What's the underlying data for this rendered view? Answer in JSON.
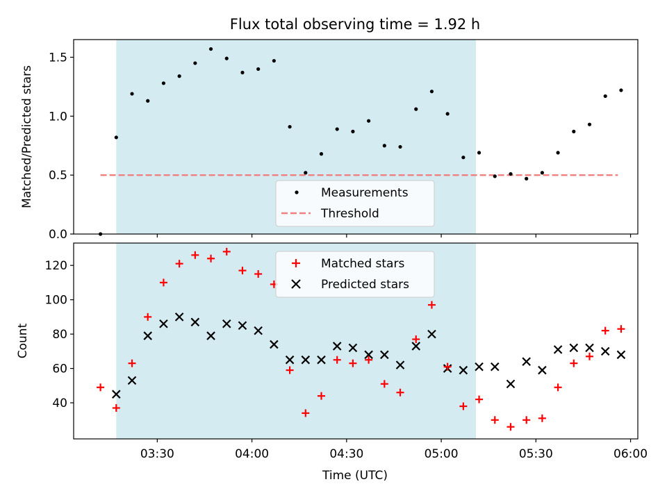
{
  "figure": {
    "title": "Flux total observing time = 1.92 h",
    "xlabel": "Time (UTC)",
    "xticks": [
      "03:30",
      "04:00",
      "04:30",
      "05:00",
      "05:30",
      "06:00"
    ],
    "xtick_minutes": [
      210,
      240,
      270,
      300,
      330,
      360
    ],
    "xlim": [
      183.5,
      362.3
    ],
    "shaded_span": [
      197,
      311
    ],
    "shade_color": "#add8e6"
  },
  "chart_data": [
    {
      "type": "scatter",
      "panel": "top",
      "ylabel": "Matched/Predicted stars",
      "ylim": [
        0,
        1.65
      ],
      "yticks": [
        0.0,
        0.5,
        1.0,
        1.5
      ],
      "ytick_labels": [
        "0.0",
        "0.5",
        "1.0",
        "1.5"
      ],
      "legend_position": "lower center",
      "threshold": {
        "name": "Threshold",
        "value": 0.5,
        "x_range": [
          192,
          356
        ],
        "color": "#f08080"
      },
      "series": [
        {
          "name": "Measurements",
          "color": "#000000",
          "x": [
            192,
            197,
            202,
            207,
            212,
            217,
            222,
            227,
            232,
            237,
            242,
            247,
            252,
            257,
            262,
            267,
            272,
            277,
            282,
            287,
            292,
            297,
            302,
            307,
            312,
            317,
            322,
            327,
            332,
            337,
            342,
            347,
            352,
            357
          ],
          "y": [
            0.0,
            0.82,
            1.19,
            1.13,
            1.28,
            1.34,
            1.45,
            1.57,
            1.49,
            1.37,
            1.4,
            1.47,
            0.91,
            0.52,
            0.68,
            0.89,
            0.87,
            0.96,
            0.75,
            0.74,
            1.06,
            1.21,
            1.02,
            0.65,
            0.69,
            0.49,
            0.51,
            0.47,
            0.52,
            0.69,
            0.87,
            0.93,
            1.17,
            1.22
          ]
        }
      ]
    },
    {
      "type": "scatter",
      "panel": "bottom",
      "ylabel": "Count",
      "ylim": [
        19,
        133
      ],
      "yticks": [
        40,
        60,
        80,
        100,
        120
      ],
      "ytick_labels": [
        "40",
        "60",
        "80",
        "100",
        "120"
      ],
      "legend_position": "upper center",
      "series": [
        {
          "name": "Matched stars",
          "marker": "plus",
          "color": "#ff0000",
          "x": [
            192,
            197,
            202,
            207,
            212,
            217,
            222,
            227,
            232,
            237,
            242,
            247,
            252,
            257,
            262,
            267,
            272,
            277,
            282,
            287,
            292,
            297,
            302,
            307,
            312,
            317,
            322,
            327,
            332,
            337,
            342,
            347,
            352,
            357
          ],
          "y": [
            49,
            37,
            63,
            90,
            110,
            121,
            126,
            124,
            128,
            117,
            115,
            109,
            59,
            34,
            44,
            65,
            63,
            65,
            51,
            46,
            77,
            97,
            61,
            38,
            42,
            30,
            26,
            30,
            31,
            49,
            63,
            67,
            82,
            83
          ]
        },
        {
          "name": "Predicted stars",
          "marker": "x",
          "color": "#000000",
          "x": [
            197,
            202,
            207,
            212,
            217,
            222,
            227,
            232,
            237,
            242,
            247,
            252,
            257,
            262,
            267,
            272,
            277,
            282,
            287,
            292,
            297,
            302,
            307,
            312,
            317,
            322,
            327,
            332,
            337,
            342,
            347,
            352,
            357
          ],
          "y": [
            45,
            53,
            79,
            86,
            90,
            87,
            79,
            86,
            85,
            82,
            74,
            65,
            65,
            65,
            73,
            72,
            68,
            68,
            62,
            73,
            80,
            60,
            59,
            61,
            61,
            51,
            64,
            59,
            71,
            72,
            72,
            70,
            68
          ]
        }
      ]
    }
  ]
}
